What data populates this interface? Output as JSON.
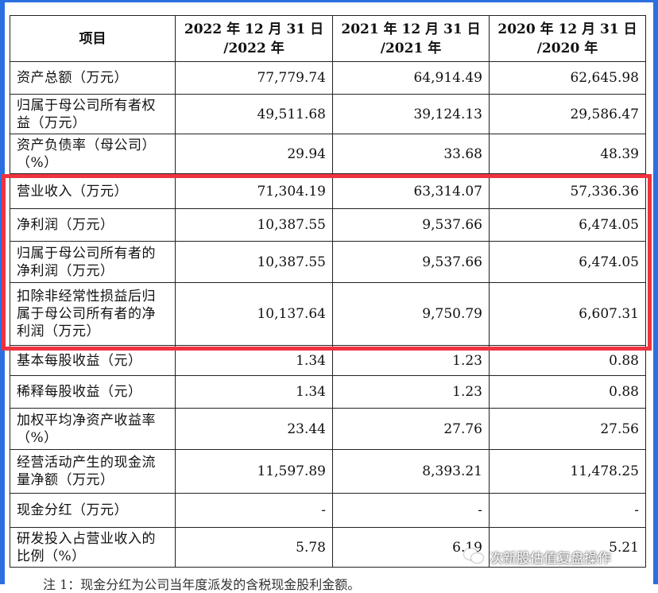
{
  "table": {
    "headers": [
      "项目",
      "2022 年 12 月 31 日\n/2022 年",
      "2021 年 12 月 31 日\n/2021 年",
      "2020 年 12 月 31 日\n/2020 年"
    ],
    "rows": [
      {
        "label": "资产总额（万元）",
        "values": [
          "77,779.74",
          "64,914.49",
          "62,645.98"
        ]
      },
      {
        "label": "归属于母公司所有者权益（万元）",
        "values": [
          "49,511.68",
          "39,124.13",
          "29,586.47"
        ]
      },
      {
        "label": "资产负债率（母公司）（%）",
        "values": [
          "29.94",
          "33.68",
          "48.39"
        ]
      },
      {
        "label": "营业收入（万元）",
        "values": [
          "71,304.19",
          "63,314.07",
          "57,336.36"
        ]
      },
      {
        "label": "净利润（万元）",
        "values": [
          "10,387.55",
          "9,537.66",
          "6,474.05"
        ]
      },
      {
        "label": "归属于母公司所有者的净利润（万元）",
        "values": [
          "10,387.55",
          "9,537.66",
          "6,474.05"
        ]
      },
      {
        "label": "扣除非经常性损益后归属于母公司所有者的净利润（万元）",
        "values": [
          "10,137.64",
          "9,750.79",
          "6,607.31"
        ]
      },
      {
        "label": "基本每股收益（元）",
        "values": [
          "1.34",
          "1.23",
          "0.88"
        ]
      },
      {
        "label": "稀释每股收益（元）",
        "values": [
          "1.34",
          "1.23",
          "0.88"
        ]
      },
      {
        "label": "加权平均净资产收益率（%）",
        "values": [
          "23.44",
          "27.76",
          "27.56"
        ]
      },
      {
        "label": "经营活动产生的现金流量净额（万元）",
        "values": [
          "11,597.89",
          "8,393.21",
          "11,478.25"
        ]
      },
      {
        "label": "现金分红（万元）",
        "values": [
          "-",
          "-",
          "-"
        ]
      },
      {
        "label": "研发投入占营业收入的比例（%）",
        "values": [
          "5.78",
          "6.19",
          "5.21"
        ]
      }
    ]
  },
  "footnote": "注 1：现金分红为公司当年度派发的含税现金股利金额。",
  "watermark": {
    "text": "次新股估值复盘操作",
    "icon": "wechat-icon"
  },
  "colors": {
    "frame": "#2b6fe0",
    "highlight": "#ef3340"
  }
}
